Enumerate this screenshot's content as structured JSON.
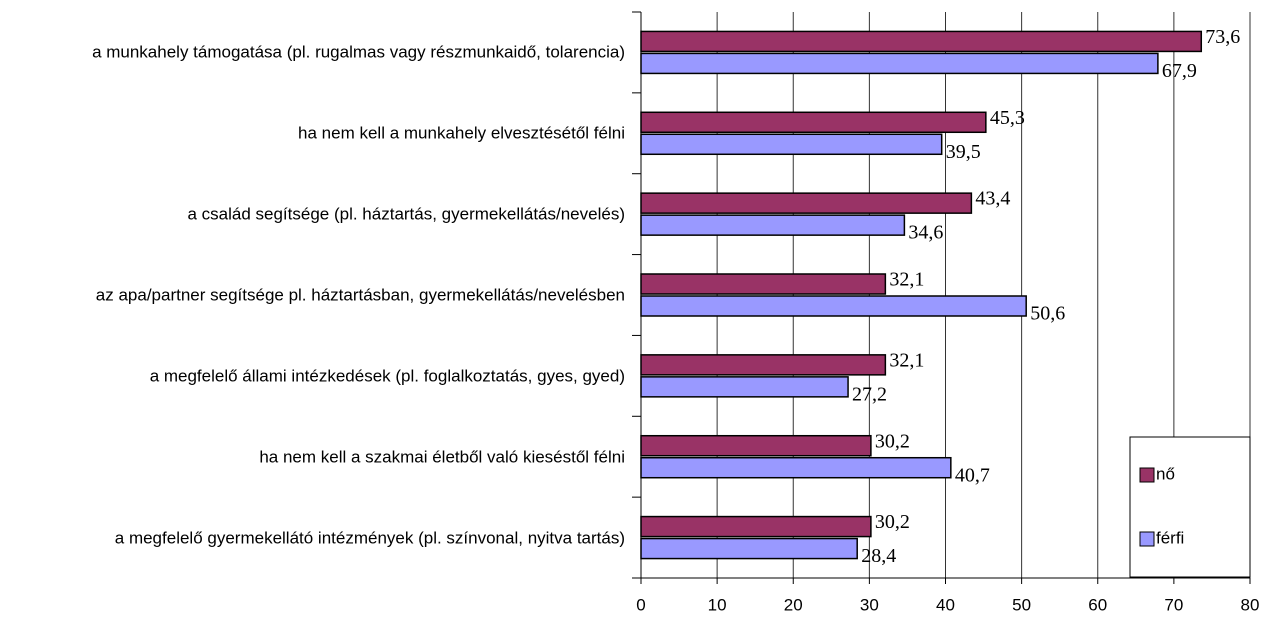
{
  "chart_data": {
    "type": "bar",
    "orientation": "horizontal",
    "categories": [
      "a munkahely támogatása (pl. rugalmas vagy részmunkaidő, tolarencia)",
      "ha nem kell a munkahely elvesztésétől félni",
      "a család segítsége (pl. háztartás, gyermekellátás/nevelés)",
      "az apa/partner segítsége pl. háztartásban, gyermekellátás/nevelésben",
      "a megfelelő állami intézkedések (pl. foglalkoztatás, gyes, gyed)",
      "ha nem kell a szakmai életből való kieséstől félni",
      "a megfelelő gyermekellátó intézmények (pl. színvonal, nyitva tartás)"
    ],
    "series": [
      {
        "name": "nő",
        "color": "#993366",
        "values": [
          73.6,
          45.3,
          43.4,
          32.1,
          32.1,
          30.2,
          30.2
        ],
        "value_labels": [
          "73,6",
          "45,3",
          "43,4",
          "32,1",
          "32,1",
          "30,2",
          "30,2"
        ]
      },
      {
        "name": "férfi",
        "color": "#9999ff",
        "values": [
          67.9,
          39.5,
          34.6,
          50.6,
          27.2,
          40.7,
          28.4
        ],
        "value_labels": [
          "67,9",
          "39,5",
          "34,6",
          "50,6",
          "27,2",
          "40,7",
          "28,4"
        ]
      }
    ],
    "xlim": [
      0,
      80
    ],
    "xticks": [
      0,
      10,
      20,
      30,
      40,
      50,
      60,
      70,
      80
    ],
    "grid": true,
    "legend": "lower right"
  }
}
